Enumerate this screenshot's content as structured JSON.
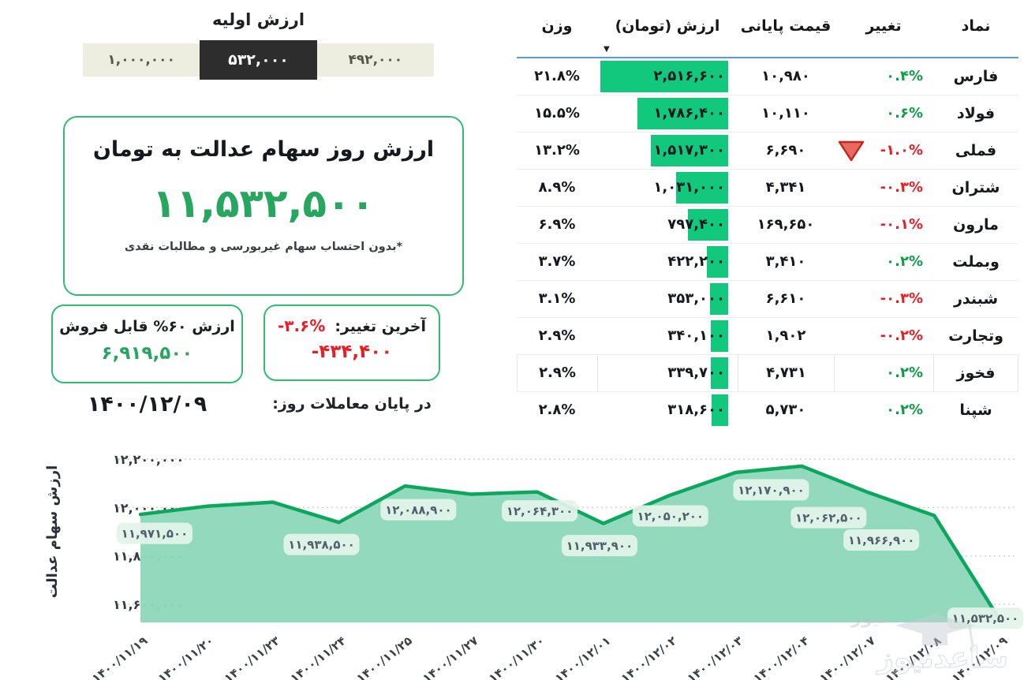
{
  "initial_value": {
    "label": "ارزش اولیه",
    "options": [
      {
        "value": "۴۹۲,۰۰۰",
        "selected": false
      },
      {
        "value": "۵۳۲,۰۰۰",
        "selected": true
      },
      {
        "value": "۱,۰۰۰,۰۰۰",
        "selected": false
      }
    ]
  },
  "current_value_card": {
    "title": "ارزش روز سهام عدالت به تومان",
    "value": "۱۱,۵۳۲,۵۰۰",
    "footnote": "*بدون احتساب سهام غیربورسی و مطالبات نقدی"
  },
  "sellable_card": {
    "title": "ارزش ۶۰% قابل فروش",
    "value": "۶,۹۱۹,۵۰۰"
  },
  "change_card": {
    "label": "آخرین تغییر:",
    "percent": "-۳.۶%",
    "amount": "-۴۳۴,۴۰۰"
  },
  "date_label": "۱۴۰۰/۱۲/۰۹",
  "end_of_day_label": "در پایان معاملات روز:",
  "colors": {
    "bar_green": "#12c87c",
    "positive": "#0e9e45",
    "negative": "#ea1c24",
    "big_value_green": "#27a65f",
    "card_border_green": "#2ebd71",
    "header_underline_blue": "#5b9bd5",
    "chart_line": "#0ca75d",
    "chart_fill": "#8fd8bb",
    "chip_bg": "#e3f4eb"
  },
  "table": {
    "headers": {
      "symbol": "نماد",
      "change": "تغییر",
      "close_price": "قیمت پایانی",
      "value": "ارزش (تومان)",
      "weight": "وزن"
    },
    "sort_icon": "▼",
    "rows": [
      {
        "symbol": "فارس",
        "change": "۰.۴%",
        "trend": "up",
        "close": "۱۰,۹۸۰",
        "value": "۲,۵۱۶,۶۰۰",
        "value_num": 2516600,
        "weight": "۲۱.۸%",
        "arrow": false,
        "highlight": false
      },
      {
        "symbol": "فولاد",
        "change": "۰.۶%",
        "trend": "up",
        "close": "۱۰,۱۱۰",
        "value": "۱,۷۸۶,۴۰۰",
        "value_num": 1786400,
        "weight": "۱۵.۵%",
        "arrow": false,
        "highlight": false
      },
      {
        "symbol": "فملی",
        "change": "-۱.۰%",
        "trend": "down",
        "close": "۶,۶۹۰",
        "value": "۱,۵۱۷,۳۰۰",
        "value_num": 1517300,
        "weight": "۱۳.۲%",
        "arrow": true,
        "highlight": false
      },
      {
        "symbol": "شتران",
        "change": "-۰.۳%",
        "trend": "down",
        "close": "۴,۳۴۱",
        "value": "۱,۰۳۱,۰۰۰",
        "value_num": 1031000,
        "weight": "۸.۹%",
        "arrow": false,
        "highlight": false
      },
      {
        "symbol": "مارون",
        "change": "-۰.۱%",
        "trend": "down",
        "close": "۱۶۹,۶۵۰",
        "value": "۷۹۷,۴۰۰",
        "value_num": 797400,
        "weight": "۶.۹%",
        "arrow": false,
        "highlight": false
      },
      {
        "symbol": "وبملت",
        "change": "۰.۲%",
        "trend": "up",
        "close": "۳,۴۱۰",
        "value": "۴۲۲,۲۰۰",
        "value_num": 422200,
        "weight": "۳.۷%",
        "arrow": false,
        "highlight": false
      },
      {
        "symbol": "شبندر",
        "change": "-۰.۳%",
        "trend": "down",
        "close": "۶,۶۱۰",
        "value": "۳۵۳,۰۰۰",
        "value_num": 353000,
        "weight": "۳.۱%",
        "arrow": false,
        "highlight": false
      },
      {
        "symbol": "وتجارت",
        "change": "-۰.۲%",
        "trend": "down",
        "close": "۱,۹۰۲",
        "value": "۳۴۰,۱۰۰",
        "value_num": 340100,
        "weight": "۲.۹%",
        "arrow": false,
        "highlight": false
      },
      {
        "symbol": "فخوز",
        "change": "۰.۲%",
        "trend": "up",
        "close": "۴,۷۳۱",
        "value": "۳۳۹,۷۰۰",
        "value_num": 339700,
        "weight": "۲.۹%",
        "arrow": false,
        "highlight": true
      },
      {
        "symbol": "شپنا",
        "change": "۰.۲%",
        "trend": "up",
        "close": "۵,۷۳۰",
        "value": "۳۱۸,۶۰۰",
        "value_num": 318600,
        "weight": "۲.۸%",
        "arrow": false,
        "highlight": false
      }
    ]
  },
  "chart_data": {
    "type": "area",
    "title": "",
    "xlabel": "",
    "ylabel": "ارزش سهام عدالت",
    "x_labels": [
      "۱۴۰۰/۱۱/۱۹",
      "۱۴۰۰/۱۱/۲۰",
      "۱۴۰۰/۱۱/۲۳",
      "۱۴۰۰/۱۱/۲۴",
      "۱۴۰۰/۱۱/۲۵",
      "۱۴۰۰/۱۱/۲۷",
      "۱۴۰۰/۱۱/۳۰",
      "۱۴۰۰/۱۲/۰۱",
      "۱۴۰۰/۱۲/۰۲",
      "۱۴۰۰/۱۲/۰۳",
      "۱۴۰۰/۱۲/۰۴",
      "۱۴۰۰/۱۲/۰۷",
      "۱۴۰۰/۱۲/۰۸",
      "۱۴۰۰/۱۲/۰۹"
    ],
    "values": [
      11971500,
      12005000,
      12022000,
      11938500,
      12088900,
      12055000,
      12064300,
      11933900,
      12050200,
      12145000,
      12170900,
      12062500,
      11966900,
      11532500
    ],
    "point_labels": [
      "۱۱,۹۷۱,۵۰۰",
      null,
      null,
      "۱۱,۹۳۸,۵۰۰",
      "۱۲,۰۸۸,۹۰۰",
      null,
      "۱۲,۰۶۴,۳۰۰",
      "۱۱,۹۳۳,۹۰۰",
      "۱۲,۰۵۰,۲۰۰",
      null,
      "۱۲,۱۷۰,۹۰۰",
      "۱۲,۰۶۲,۵۰۰",
      "۱۱,۹۶۶,۹۰۰",
      "۱۱,۵۳۲,۵۰۰"
    ],
    "y_ticks": [
      {
        "value": 12200000,
        "label": "۱۲,۲۰۰,۰۰۰"
      },
      {
        "value": 12000000,
        "label": "۱۲,۰۰۰,۰۰۰"
      },
      {
        "value": 11800000,
        "label": "۱۱,۸۰۰,۰۰۰"
      },
      {
        "value": 11600000,
        "label": "۱۱,۶۰۰,۰۰۰"
      }
    ],
    "ylim": [
      11500000,
      12250000
    ],
    "grid": "dotted-horizontal",
    "legend": "none"
  },
  "watermark": {
    "text_small": "نیوز",
    "text_large": "ساعدنیوز"
  }
}
